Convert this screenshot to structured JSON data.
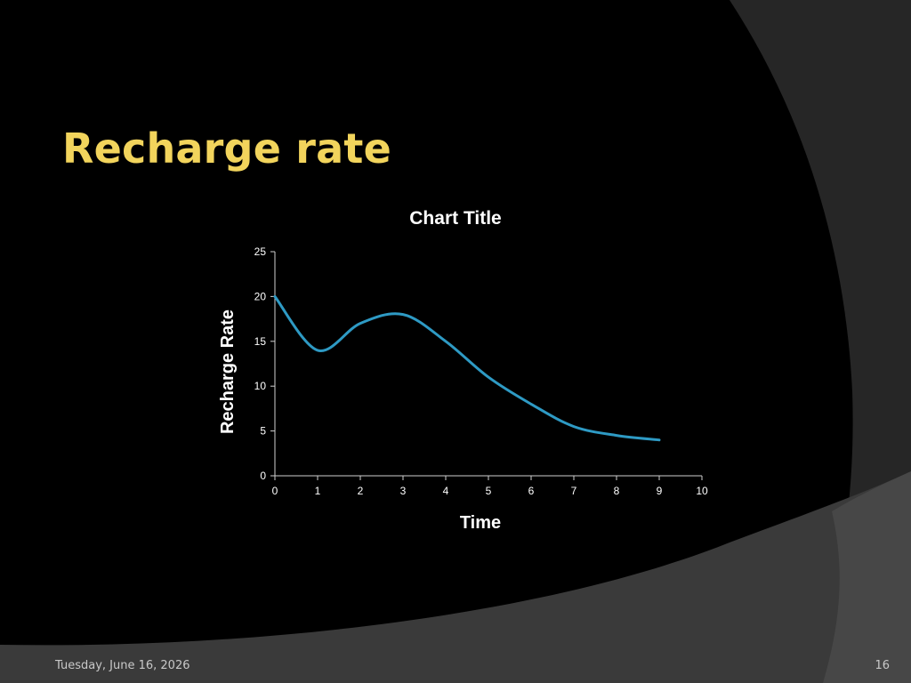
{
  "slide": {
    "title": "Recharge rate",
    "date": "Tuesday, June 16, 2026",
    "page_number": "16",
    "colors": {
      "background": "#000000",
      "title": "#f2d45c",
      "line": "#2e9ac4",
      "text": "#ffffff"
    }
  },
  "chart_data": {
    "type": "line",
    "title": "Chart Title",
    "xlabel": "Time",
    "ylabel": "Recharge Rate",
    "xlim": [
      0,
      10
    ],
    "ylim": [
      0,
      25
    ],
    "xticks": [
      0,
      1,
      2,
      3,
      4,
      5,
      6,
      7,
      8,
      9,
      10
    ],
    "yticks": [
      0,
      5,
      10,
      15,
      20,
      25
    ],
    "grid": false,
    "legend": "none",
    "smooth": true,
    "series": [
      {
        "x": [
          0,
          1,
          2,
          3,
          4,
          5,
          6,
          7,
          8,
          9
        ],
        "values": [
          20,
          14,
          17,
          18,
          15,
          11,
          8,
          5.5,
          4.5,
          4
        ]
      }
    ]
  }
}
